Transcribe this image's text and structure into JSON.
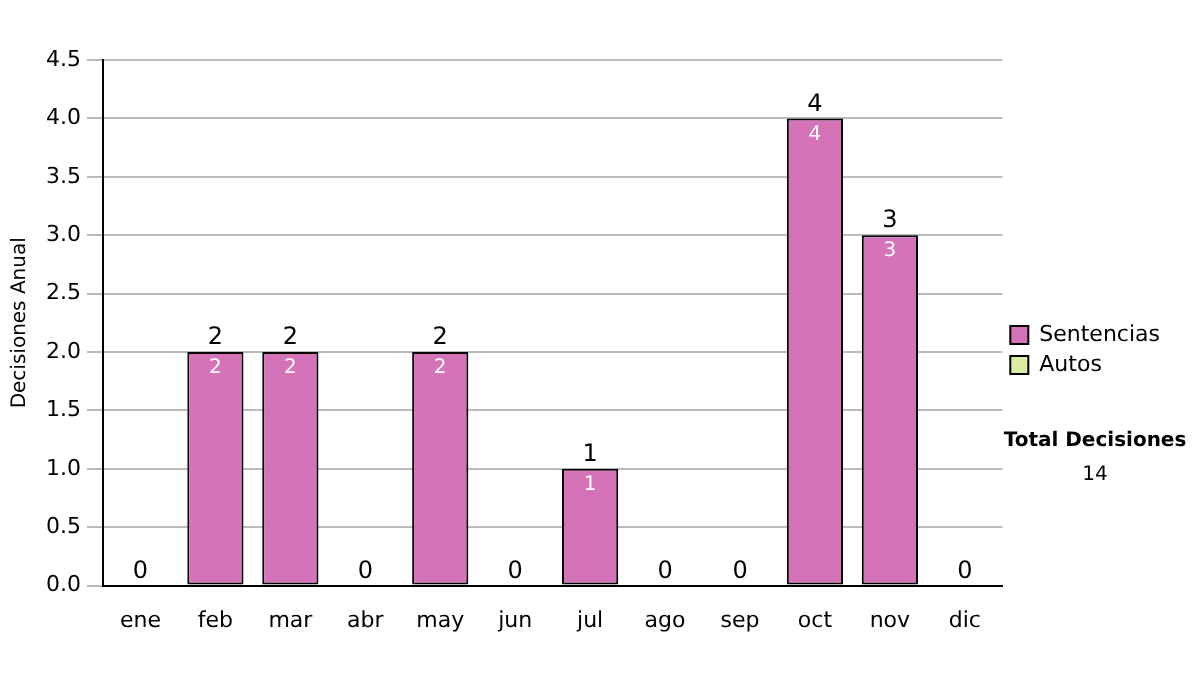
{
  "chart_data": {
    "type": "bar",
    "stacked": true,
    "ylabel": "Decisiones Anual",
    "categories": [
      "ene",
      "feb",
      "mar",
      "abr",
      "may",
      "jun",
      "jul",
      "ago",
      "sep",
      "oct",
      "nov",
      "dic"
    ],
    "series": [
      {
        "name": "Sentencias",
        "color": "#d473b8",
        "values": [
          0,
          2,
          2,
          0,
          2,
          0,
          1,
          0,
          0,
          4,
          3,
          0
        ],
        "value_labels": [
          null,
          "2",
          "2",
          null,
          "2",
          null,
          "1",
          null,
          null,
          "4",
          "3",
          null
        ]
      },
      {
        "name": "Autos",
        "color": "#d9eea0",
        "values": [
          0,
          0,
          0,
          0,
          0,
          0,
          0,
          0,
          0,
          0,
          0,
          0
        ]
      }
    ],
    "totals": [
      "0",
      "2",
      "2",
      "0",
      "2",
      "0",
      "1",
      "0",
      "0",
      "4",
      "3",
      "0"
    ],
    "ylim": [
      0,
      4.5
    ],
    "yticks": [
      {
        "value": 0,
        "label": "0.0"
      },
      {
        "value": 0.5,
        "label": "0.5"
      },
      {
        "value": 1,
        "label": "1.0"
      },
      {
        "value": 1.5,
        "label": "1.5"
      },
      {
        "value": 2,
        "label": "2.0"
      },
      {
        "value": 2.5,
        "label": "2.5"
      },
      {
        "value": 3,
        "label": "3.0"
      },
      {
        "value": 3.5,
        "label": "3.5"
      },
      {
        "value": 4,
        "label": "4.0"
      },
      {
        "value": 4.5,
        "label": "4.5"
      }
    ],
    "grid": "y",
    "legend": "right",
    "annotations": [
      "Total Decisiones",
      "14"
    ]
  }
}
